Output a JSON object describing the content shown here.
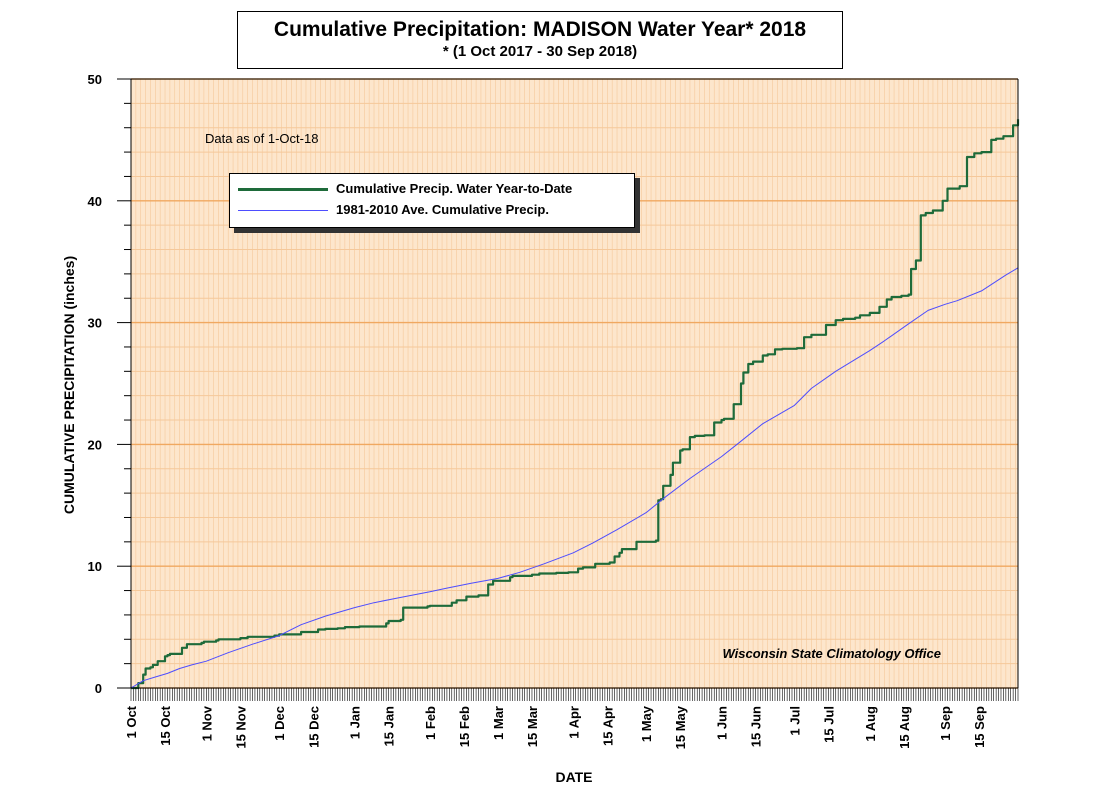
{
  "title": "Cumulative Precipitation: MADISON Water Year* 2018",
  "subtitle": "* (1 Oct 2017 - 30 Sep 2018)",
  "note": "Data as of 1-Oct-18",
  "credit": "Wisconsin State Climatology Office",
  "colors": {
    "background": "#fde6cc",
    "grid_major": "#f0a860",
    "grid_minor": "#f5c89a",
    "actual": "#1e6b3a",
    "average": "#4d4dff"
  },
  "chart_data": {
    "type": "line",
    "title": "Cumulative Precipitation: MADISON Water Year* 2018",
    "subtitle": "* (1 Oct 2017 - 30 Sep 2018)",
    "xlabel": "DATE",
    "ylabel": "CUMULATIVE PRECIPITATION (inches)",
    "ylim": [
      0,
      50
    ],
    "xlim_days": [
      0,
      365
    ],
    "yticks": [
      "0",
      "10",
      "20",
      "30",
      "40",
      "50"
    ],
    "xtick_days": [
      0,
      14,
      31,
      45,
      61,
      75,
      92,
      106,
      123,
      137,
      151,
      165,
      182,
      196,
      212,
      226,
      243,
      257,
      273,
      287,
      304,
      318,
      335,
      349
    ],
    "xtick_labels": [
      "1 Oct",
      "15 Oct",
      "1 Nov",
      "15 Nov",
      "1 Dec",
      "15 Dec",
      "1 Jan",
      "15 Jan",
      "1 Feb",
      "15 Feb",
      "1 Mar",
      "15 Mar",
      "1 Apr",
      "15 Apr",
      "1 May",
      "15 May",
      "1 Jun",
      "15 Jun",
      "1 Jul",
      "15 Jul",
      "1 Aug",
      "15 Aug",
      "1 Sep",
      "15 Sep"
    ],
    "legend_position": "upper-left",
    "series": [
      {
        "name": "Cumulative Precip.  Water Year-to-Date",
        "step": true,
        "days": [
          0,
          3,
          5,
          6,
          8,
          9,
          11,
          14,
          15,
          16,
          21,
          23,
          29,
          30,
          35,
          36,
          45,
          48,
          59,
          61,
          70,
          77,
          80,
          85,
          88,
          94,
          105,
          106,
          111,
          112,
          122,
          123,
          132,
          134,
          138,
          143,
          147,
          149,
          156,
          157,
          165,
          168,
          175,
          180,
          184,
          186,
          191,
          197,
          199,
          201,
          202,
          208,
          216,
          217,
          218,
          219,
          222,
          223,
          226,
          227,
          230,
          232,
          236,
          240,
          243,
          244,
          248,
          251,
          252,
          254,
          256,
          260,
          262,
          265,
          268,
          274,
          277,
          280,
          286,
          290,
          293,
          298,
          300,
          304,
          308,
          311,
          313,
          317,
          320,
          321,
          323,
          325,
          327,
          330,
          334,
          336,
          341,
          344,
          347,
          350,
          354,
          356,
          359,
          363,
          365
        ],
        "values": [
          0,
          0.4,
          1.1,
          1.6,
          1.7,
          1.9,
          2.2,
          2.6,
          2.7,
          2.8,
          3.3,
          3.6,
          3.7,
          3.8,
          3.9,
          4.0,
          4.1,
          4.2,
          4.3,
          4.4,
          4.6,
          4.8,
          4.85,
          4.9,
          5.0,
          5.05,
          5.3,
          5.5,
          5.6,
          6.6,
          6.7,
          6.75,
          7.0,
          7.2,
          7.5,
          7.6,
          8.5,
          8.8,
          9.1,
          9.2,
          9.3,
          9.4,
          9.45,
          9.5,
          9.8,
          9.9,
          10.2,
          10.3,
          10.8,
          11.1,
          11.4,
          12.0,
          12.1,
          15.4,
          15.5,
          16.6,
          17.5,
          18.5,
          19.5,
          19.6,
          20.6,
          20.7,
          20.75,
          21.8,
          22.0,
          22.1,
          23.3,
          25.0,
          25.9,
          26.6,
          26.8,
          27.3,
          27.4,
          27.8,
          27.85,
          27.9,
          28.8,
          29.0,
          29.8,
          30.2,
          30.3,
          30.4,
          30.6,
          30.8,
          31.3,
          31.9,
          32.1,
          32.2,
          32.3,
          34.4,
          35.1,
          38.8,
          39.0,
          39.2,
          40.0,
          41.0,
          41.2,
          43.6,
          43.9,
          44.0,
          45.0,
          45.1,
          45.3,
          46.2,
          46.7
        ]
      },
      {
        "name": "1981-2010 Ave. Cumulative Precip.",
        "step": false,
        "days": [
          0,
          5,
          10,
          15,
          20,
          25,
          31,
          40,
          50,
          61,
          70,
          80,
          92,
          100,
          110,
          123,
          130,
          140,
          151,
          160,
          170,
          182,
          190,
          200,
          212,
          220,
          230,
          243,
          250,
          260,
          273,
          280,
          290,
          304,
          310,
          320,
          328,
          335,
          340,
          350,
          360,
          365
        ],
        "values": [
          0,
          0.6,
          0.9,
          1.2,
          1.6,
          1.9,
          2.2,
          2.9,
          3.6,
          4.3,
          5.2,
          5.9,
          6.6,
          7.0,
          7.4,
          7.9,
          8.2,
          8.6,
          9.0,
          9.5,
          10.2,
          11.1,
          11.9,
          13.0,
          14.4,
          15.7,
          17.2,
          19.0,
          20.1,
          21.7,
          23.2,
          24.6,
          26.0,
          27.7,
          28.5,
          29.9,
          31.0,
          31.5,
          31.8,
          32.6,
          33.9,
          34.5
        ]
      }
    ]
  }
}
